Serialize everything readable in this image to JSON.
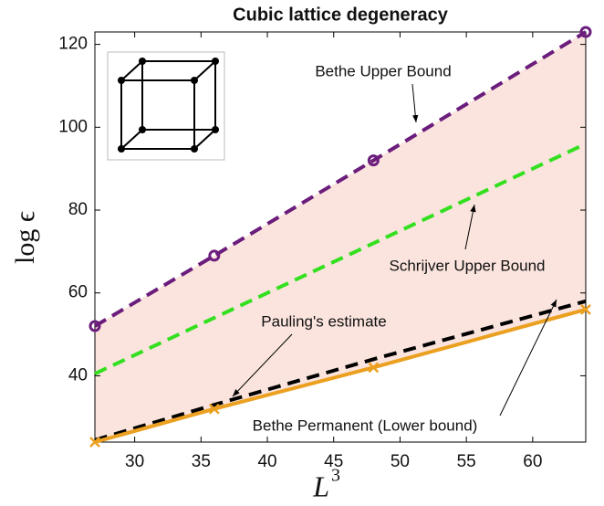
{
  "chart_data": {
    "type": "line",
    "title": "Cubic lattice degeneracy",
    "x_label": "L",
    "x_label_sup": "3",
    "y_label": "log ϵ",
    "x": [
      27,
      36,
      48,
      64
    ],
    "series": [
      {
        "name": "Bethe Upper Bound",
        "color": "#6b1d7c",
        "dash": true,
        "marker": "circle",
        "values": [
          52,
          69,
          92,
          123
        ]
      },
      {
        "name": "Schrijver Upper Bound",
        "color": "#33e01f",
        "dash": true,
        "marker": null,
        "values": [
          40.5,
          54,
          72,
          96
        ]
      },
      {
        "name": "Pauling's estimate",
        "color": "#000000",
        "dash": true,
        "marker": null,
        "values": [
          24.5,
          33,
          44,
          58
        ]
      },
      {
        "name": "Bethe Permanent (Lower bound)",
        "color": "#eba020",
        "dash": false,
        "marker": "x",
        "values": [
          24,
          32,
          42,
          56
        ]
      }
    ],
    "fill_color": "#fbe4dd",
    "xlim": [
      27,
      64
    ],
    "xticks": [
      30,
      35,
      40,
      45,
      50,
      55,
      60
    ],
    "ylim": [
      24,
      123
    ],
    "yticks": [
      40,
      60,
      80,
      100,
      120
    ]
  }
}
